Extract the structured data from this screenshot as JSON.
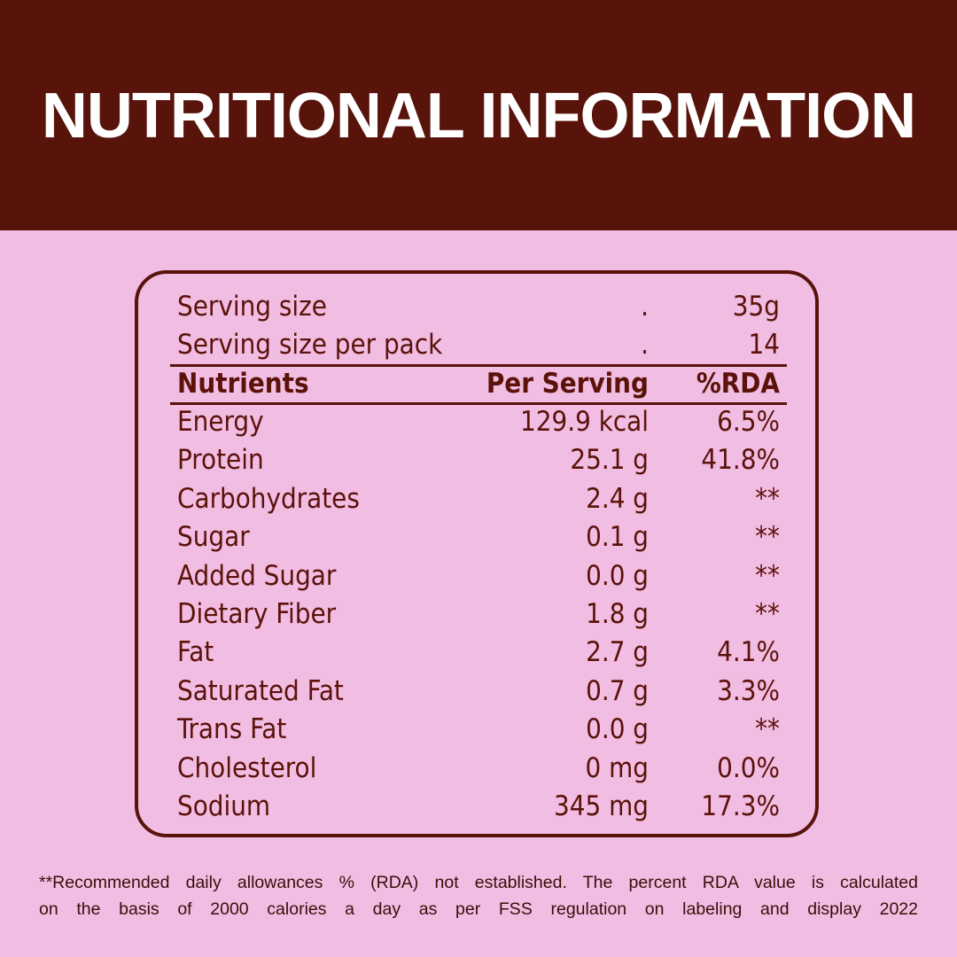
{
  "header": {
    "title": "NUTRITIONAL INFORMATION"
  },
  "serving": [
    [
      "Serving  size",
      ".",
      "35g"
    ],
    [
      "Serving size per pack",
      ".",
      "14"
    ]
  ],
  "table": {
    "columns": [
      "Nutrients",
      "Per Serving",
      "%RDA"
    ],
    "rows": [
      [
        "Energy",
        "129.9 kcal",
        "6.5%"
      ],
      [
        "Protein",
        "25.1 g",
        "41.8%"
      ],
      [
        "Carbohydrates",
        "2.4 g",
        "**"
      ],
      [
        "Sugar",
        "0.1 g",
        "**"
      ],
      [
        "Added Sugar",
        "0.0 g",
        "**"
      ],
      [
        "Dietary Fiber",
        "1.8 g",
        "**"
      ],
      [
        "Fat",
        "2.7 g",
        "4.1%"
      ],
      [
        "Saturated Fat",
        "0.7 g",
        "3.3%"
      ],
      [
        "Trans Fat",
        "0.0 g",
        "**"
      ],
      [
        "Cholesterol",
        "0 mg",
        "0.0%"
      ],
      [
        "Sodium",
        "345 mg",
        "17.3%"
      ]
    ]
  },
  "footnote": [
    "**Recommended daily allowances % (RDA) not established. The percent RDA value is calculated",
    "on the basis of 2000 calories a day as per FSS regulation on labeling and display 2022"
  ]
}
